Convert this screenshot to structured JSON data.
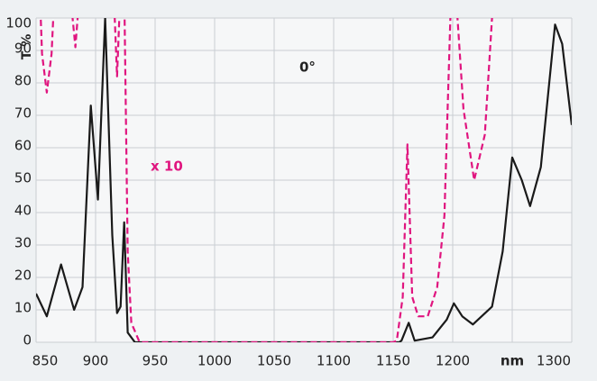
{
  "chart_data": {
    "type": "line",
    "ylabel": "T %",
    "annotations": [
      "0°",
      "x 10"
    ],
    "xlim": [
      850,
      1300
    ],
    "ylim": [
      0,
      100
    ],
    "xticks": [
      850,
      900,
      950,
      1000,
      1050,
      1100,
      1150,
      1200,
      {
        "value": 1250,
        "label": "nm"
      },
      1300
    ],
    "yticks": [
      0,
      10,
      20,
      30,
      40,
      50,
      60,
      70,
      80,
      90,
      100
    ],
    "grid": true,
    "series": [
      {
        "color": "#1a1a1a",
        "dash": false,
        "x": [
          850,
          859,
          871,
          882,
          889,
          896,
          902,
          908,
          914,
          918,
          921,
          924,
          927,
          933,
          1000,
          1100,
          1155,
          1157,
          1163,
          1168,
          1183,
          1195,
          1201,
          1208,
          1217,
          1233,
          1242,
          1250,
          1258,
          1265,
          1274,
          1286,
          1292,
          1300
        ],
        "values": [
          15,
          8,
          24,
          10,
          17,
          73,
          44,
          100,
          33,
          9,
          11,
          37,
          3,
          0,
          0,
          0,
          0,
          0.5,
          6,
          0.5,
          1.5,
          7,
          12,
          8,
          5.5,
          11,
          28,
          57,
          50,
          42,
          54,
          98,
          92,
          67
        ]
      },
      {
        "color": "#e0157f",
        "dash": true,
        "x": [
          851,
          855,
          859,
          863,
          867,
          878,
          883,
          887,
          915,
          918,
          921,
          924,
          927,
          930,
          937,
          1000,
          1100,
          1150,
          1153,
          1158,
          1162,
          1166,
          1171,
          1179,
          1187,
          1193,
          1198,
          1202,
          1204,
          1209,
          1218,
          1227,
          1233,
          1236
        ],
        "values": [
          130,
          89,
          77,
          89,
          120,
          110,
          91,
          110,
          110,
          82,
          110,
          110,
          28,
          6,
          0,
          0,
          0,
          0,
          0.5,
          14,
          61,
          14,
          8,
          8,
          17,
          39,
          100,
          120,
          100,
          72,
          50,
          64,
          100,
          120
        ]
      }
    ]
  }
}
